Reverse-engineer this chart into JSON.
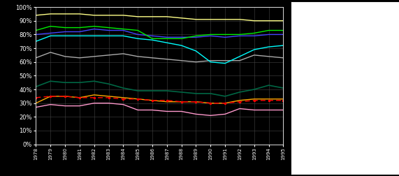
{
  "years": [
    1978,
    1979,
    1980,
    1981,
    1982,
    1983,
    1984,
    1985,
    1986,
    1987,
    1988,
    1989,
    1990,
    1991,
    1992,
    1993,
    1994,
    1995
  ],
  "Violence": [
    0.8,
    0.81,
    0.82,
    0.82,
    0.84,
    0.83,
    0.83,
    0.8,
    0.79,
    0.78,
    0.78,
    0.78,
    0.79,
    0.78,
    0.79,
    0.79,
    0.8,
    0.8
  ],
  "Sexual": [
    0.63,
    0.67,
    0.64,
    0.63,
    0.64,
    0.65,
    0.66,
    0.64,
    0.63,
    0.62,
    0.61,
    0.6,
    0.61,
    0.61,
    0.61,
    0.65,
    0.64,
    0.63
  ],
  "Drugs": [
    0.94,
    0.95,
    0.95,
    0.95,
    0.94,
    0.94,
    0.94,
    0.93,
    0.93,
    0.93,
    0.92,
    0.91,
    0.91,
    0.91,
    0.91,
    0.9,
    0.9,
    0.9
  ],
  "Dishonesty": [
    0.27,
    0.29,
    0.28,
    0.28,
    0.3,
    0.3,
    0.29,
    0.25,
    0.25,
    0.24,
    0.24,
    0.22,
    0.21,
    0.22,
    0.26,
    0.25,
    0.25,
    0.25
  ],
  "PropDamage": [
    0.3,
    0.35,
    0.35,
    0.34,
    0.36,
    0.35,
    0.34,
    0.33,
    0.32,
    0.31,
    0.31,
    0.31,
    0.3,
    0.3,
    0.32,
    0.33,
    0.33,
    0.33
  ],
  "PropAbuse": [
    0.75,
    0.79,
    0.79,
    0.79,
    0.79,
    0.79,
    0.79,
    0.77,
    0.76,
    0.74,
    0.72,
    0.68,
    0.6,
    0.59,
    0.64,
    0.69,
    0.71,
    0.72
  ],
  "Administrative": [
    0.83,
    0.86,
    0.85,
    0.85,
    0.86,
    0.85,
    0.84,
    0.83,
    0.77,
    0.77,
    0.77,
    0.79,
    0.8,
    0.8,
    0.8,
    0.81,
    0.83,
    0.83
  ],
  "Total": [
    0.42,
    0.46,
    0.45,
    0.45,
    0.46,
    0.44,
    0.41,
    0.39,
    0.39,
    0.39,
    0.38,
    0.37,
    0.37,
    0.35,
    0.38,
    0.4,
    0.43,
    0.41
  ],
  "OverallTrend": [
    0.34,
    0.35,
    0.35,
    0.34,
    0.34,
    0.34,
    0.33,
    0.33,
    0.32,
    0.32,
    0.31,
    0.31,
    0.3,
    0.3,
    0.31,
    0.32,
    0.32,
    0.32
  ],
  "bg_color": "#000000",
  "plot_bg_color": "#000000",
  "text_color": "#ffffff",
  "grid_color": "#444444",
  "colors": {
    "Violence": "#4444ff",
    "Sexual": "#aaaaaa",
    "Drugs": "#ffff88",
    "Dishonesty": "#ff99cc",
    "PropDamage": "#ffaa00",
    "PropAbuse": "#00ffff",
    "Administrative": "#00ee00",
    "Total": "#006644",
    "OverallTrend": "#ff0000"
  }
}
